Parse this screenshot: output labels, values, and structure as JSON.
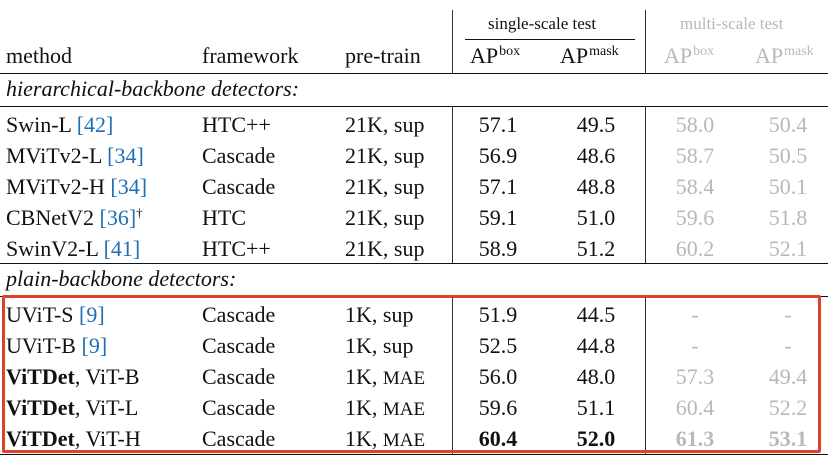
{
  "header": {
    "group_single": "single-scale test",
    "group_multi": "multi-scale test",
    "method": "method",
    "framework": "framework",
    "pretrain": "pre-train",
    "ap": "AP",
    "box": "box",
    "mask": "mask"
  },
  "sections": {
    "hier": "hierarchical-backbone detectors:",
    "plain": "plain-backbone detectors:"
  },
  "rows": [
    {
      "name": "Swin-L",
      "ref": "[42]",
      "dagger": "",
      "framework": "HTC++",
      "pretrain": "21K, sup",
      "pre_sc": "",
      "ss_box": "57.1",
      "ss_mask": "49.5",
      "ms_box": "58.0",
      "ms_mask": "50.4"
    },
    {
      "name": "MViTv2-L",
      "ref": "[34]",
      "dagger": "",
      "framework": "Cascade",
      "pretrain": "21K, sup",
      "pre_sc": "",
      "ss_box": "56.9",
      "ss_mask": "48.6",
      "ms_box": "58.7",
      "ms_mask": "50.5"
    },
    {
      "name": "MViTv2-H",
      "ref": "[34]",
      "dagger": "",
      "framework": "Cascade",
      "pretrain": "21K, sup",
      "pre_sc": "",
      "ss_box": "57.1",
      "ss_mask": "48.8",
      "ms_box": "58.4",
      "ms_mask": "50.1"
    },
    {
      "name": "CBNetV2",
      "ref": "[36]",
      "dagger": "†",
      "framework": "HTC",
      "pretrain": "21K, sup",
      "pre_sc": "",
      "ss_box": "59.1",
      "ss_mask": "51.0",
      "ms_box": "59.6",
      "ms_mask": "51.8"
    },
    {
      "name": "SwinV2-L",
      "ref": "[41]",
      "dagger": "",
      "framework": "HTC++",
      "pretrain": "21K, sup",
      "pre_sc": "",
      "ss_box": "58.9",
      "ss_mask": "51.2",
      "ms_box": "60.2",
      "ms_mask": "52.1"
    },
    {
      "name": "UViT-S",
      "ref": "[9]",
      "dagger": "",
      "framework": "Cascade",
      "pretrain": "1K, sup",
      "pre_sc": "",
      "ss_box": "51.9",
      "ss_mask": "44.5",
      "ms_box": "-",
      "ms_mask": "-"
    },
    {
      "name": "UViT-B",
      "ref": "[9]",
      "dagger": "",
      "framework": "Cascade",
      "pretrain": "1K, sup",
      "pre_sc": "",
      "ss_box": "52.5",
      "ss_mask": "44.8",
      "ms_box": "-",
      "ms_mask": "-"
    },
    {
      "name_bold": "ViTDet",
      "name_rest": ", ViT-B",
      "framework": "Cascade",
      "pretrain": "1K, ",
      "pre_sc": "MAE",
      "ss_box": "56.0",
      "ss_mask": "48.0",
      "ms_box": "57.3",
      "ms_mask": "49.4"
    },
    {
      "name_bold": "ViTDet",
      "name_rest": ", ViT-L",
      "framework": "Cascade",
      "pretrain": "1K, ",
      "pre_sc": "MAE",
      "ss_box": "59.6",
      "ss_mask": "51.1",
      "ms_box": "60.4",
      "ms_mask": "52.2"
    },
    {
      "name_bold": "ViTDet",
      "name_rest": ", ViT-H",
      "framework": "Cascade",
      "pretrain": "1K, ",
      "pre_sc": "MAE",
      "ss_box": "60.4",
      "ss_mask": "52.0",
      "ms_box": "61.3",
      "ms_mask": "53.1"
    }
  ],
  "colors": {
    "highlight": "#e0412a",
    "ref": "#1f6fb5",
    "muted": "#b8b8b8"
  }
}
